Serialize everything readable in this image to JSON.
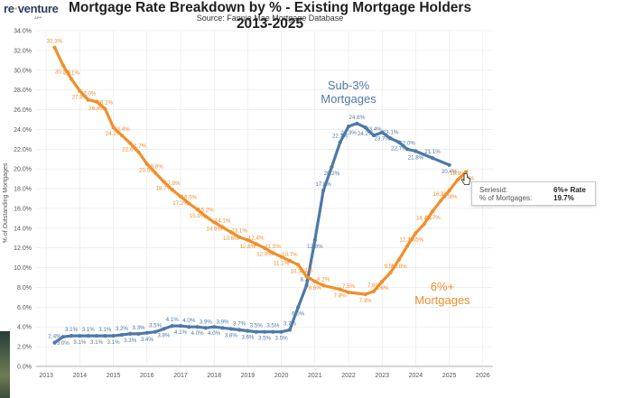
{
  "brand": {
    "name_part1": "re",
    "name_dot": "·",
    "name_part2": "venture",
    "sub": "APP"
  },
  "title": "Mortgage Rate Breakdown by % - Existing Mortgage Holders 2013-2025",
  "subtitle": "Source: Fannie Mae Mortgage Database",
  "colors": {
    "sub3": "#4e79a7",
    "six_plus": "#f28e2b",
    "grid": "#e6e6e6",
    "text": "#555555"
  },
  "tooltip": {
    "series_key": "Seriesid:",
    "series_value": "6%+ Rate",
    "pct_key": "% of Mortgages:",
    "pct_value": "19.7%"
  },
  "chart_data": {
    "type": "line",
    "title": "Mortgage Rate Breakdown by % - Existing Mortgage Holders 2013-2025",
    "ylabel": "% of Outstanding Mortgages",
    "xlabel": "",
    "ylim": [
      0,
      34
    ],
    "xlim": [
      2012.7,
      2026.3
    ],
    "y_ticks": [
      "0.0%",
      "2.0%",
      "4.0%",
      "6.0%",
      "8.0%",
      "10.0%",
      "12.0%",
      "14.0%",
      "16.0%",
      "18.0%",
      "20.0%",
      "22.0%",
      "24.0%",
      "26.0%",
      "28.0%",
      "30.0%",
      "32.0%",
      "34.0%"
    ],
    "x_ticks": [
      "2013",
      "2014",
      "2015",
      "2016",
      "2017",
      "2018",
      "2019",
      "2020",
      "2021",
      "2022",
      "2023",
      "2024",
      "2025",
      "2026"
    ],
    "series": [
      {
        "name": "Sub-3% Mortgages",
        "label_line1": "Sub-3%",
        "label_line2": "Mortgages",
        "color": "#4e79a7",
        "points": [
          {
            "x": 2013.25,
            "y": 2.4,
            "label": "2.4%"
          },
          {
            "x": 2013.5,
            "y": 3.0,
            "label": "3.0%"
          },
          {
            "x": 2013.75,
            "y": 3.1,
            "label": "3.1%"
          },
          {
            "x": 2014.0,
            "y": 3.1,
            "label": "3.1%"
          },
          {
            "x": 2014.25,
            "y": 3.1,
            "label": "3.1%"
          },
          {
            "x": 2014.5,
            "y": 3.1,
            "label": "3.1%"
          },
          {
            "x": 2014.75,
            "y": 3.1,
            "label": "3.1%"
          },
          {
            "x": 2015.0,
            "y": 3.1,
            "label": "3.1%"
          },
          {
            "x": 2015.25,
            "y": 3.2,
            "label": "3.2%"
          },
          {
            "x": 2015.5,
            "y": 3.3,
            "label": "3.3%"
          },
          {
            "x": 2015.75,
            "y": 3.3,
            "label": "3.3%"
          },
          {
            "x": 2016.0,
            "y": 3.4,
            "label": "3.4%"
          },
          {
            "x": 2016.25,
            "y": 3.5,
            "label": "3.5%"
          },
          {
            "x": 2016.5,
            "y": 3.8,
            "label": "3.8%"
          },
          {
            "x": 2016.75,
            "y": 4.1,
            "label": "4.1%"
          },
          {
            "x": 2017.0,
            "y": 4.1,
            "label": "4.1%"
          },
          {
            "x": 2017.25,
            "y": 4.0,
            "label": "4.0%"
          },
          {
            "x": 2017.5,
            "y": 4.0,
            "label": "4.0%"
          },
          {
            "x": 2017.75,
            "y": 3.9,
            "label": "3.9%"
          },
          {
            "x": 2018.0,
            "y": 4.0,
            "label": "4.0%"
          },
          {
            "x": 2018.25,
            "y": 3.9,
            "label": "3.9%"
          },
          {
            "x": 2018.5,
            "y": 3.8,
            "label": "3.8%"
          },
          {
            "x": 2018.75,
            "y": 3.7,
            "label": "3.7%"
          },
          {
            "x": 2019.0,
            "y": 3.6,
            "label": "3.6%"
          },
          {
            "x": 2019.25,
            "y": 3.5,
            "label": "3.5%"
          },
          {
            "x": 2019.5,
            "y": 3.5,
            "label": "3.5%"
          },
          {
            "x": 2019.75,
            "y": 3.5,
            "label": "3.5%"
          },
          {
            "x": 2020.0,
            "y": 3.5,
            "label": "3.5%"
          },
          {
            "x": 2020.25,
            "y": 3.7,
            "label": "3.7%"
          },
          {
            "x": 2020.5,
            "y": 6.0,
            "label": "6.0%"
          },
          {
            "x": 2020.75,
            "y": 8.2,
            "label": "8.2%"
          },
          {
            "x": 2021.0,
            "y": 12.8,
            "label": "12.8%"
          },
          {
            "x": 2021.25,
            "y": 17.8,
            "label": "17.8%"
          },
          {
            "x": 2021.5,
            "y": 20.2,
            "label": "20.2%"
          },
          {
            "x": 2021.75,
            "y": 22.7,
            "label": "22.7%"
          },
          {
            "x": 2022.0,
            "y": 24.3,
            "label": "24.3%"
          },
          {
            "x": 2022.25,
            "y": 24.6,
            "label": "24.6%"
          },
          {
            "x": 2022.5,
            "y": 24.2,
            "label": "24.2%"
          },
          {
            "x": 2022.75,
            "y": 23.4,
            "label": "23.4%"
          },
          {
            "x": 2023.0,
            "y": 23.7,
            "label": "23.7%"
          },
          {
            "x": 2023.25,
            "y": 23.1,
            "label": "23.1%"
          },
          {
            "x": 2023.5,
            "y": 22.7,
            "label": "22.7%"
          },
          {
            "x": 2023.75,
            "y": 22.0,
            "label": "22.0%"
          },
          {
            "x": 2024.0,
            "y": 21.8,
            "label": "21.8%"
          },
          {
            "x": 2024.5,
            "y": 21.1,
            "label": "21.1%"
          },
          {
            "x": 2025.0,
            "y": 20.4,
            "label": "20.4%"
          }
        ]
      },
      {
        "name": "6%+ Mortgages",
        "label_line1": "6%+",
        "label_line2": "Mortgages",
        "color": "#f28e2b",
        "points": [
          {
            "x": 2013.25,
            "y": 32.3,
            "label": "32.3%"
          },
          {
            "x": 2013.5,
            "y": 30.5,
            "label": "30.5%"
          },
          {
            "x": 2013.75,
            "y": 29.1,
            "label": "29.1%"
          },
          {
            "x": 2014.0,
            "y": 27.9,
            "label": "27.9%"
          },
          {
            "x": 2014.25,
            "y": 27.0,
            "label": "27.0%"
          },
          {
            "x": 2014.5,
            "y": 26.8,
            "label": "26.8%"
          },
          {
            "x": 2014.75,
            "y": 26.1,
            "label": "26.1%"
          },
          {
            "x": 2015.0,
            "y": 24.2,
            "label": "24.2%"
          },
          {
            "x": 2015.25,
            "y": 23.4,
            "label": "23.4%"
          },
          {
            "x": 2015.5,
            "y": 22.6,
            "label": "22.6%"
          },
          {
            "x": 2015.75,
            "y": 21.7,
            "label": "21.7%"
          },
          {
            "x": 2016.0,
            "y": 20.5,
            "label": "20.5%"
          },
          {
            "x": 2016.25,
            "y": 19.6,
            "label": "19.6%"
          },
          {
            "x": 2016.5,
            "y": 18.7,
            "label": "18.7%"
          },
          {
            "x": 2016.75,
            "y": 17.9,
            "label": "17.9%"
          },
          {
            "x": 2017.0,
            "y": 17.2,
            "label": "17.2%"
          },
          {
            "x": 2017.25,
            "y": 16.5,
            "label": "16.5%"
          },
          {
            "x": 2017.5,
            "y": 15.9,
            "label": "15.9%"
          },
          {
            "x": 2017.75,
            "y": 15.2,
            "label": "15.2%"
          },
          {
            "x": 2018.0,
            "y": 14.6,
            "label": "14.6%"
          },
          {
            "x": 2018.25,
            "y": 14.1,
            "label": "14.1%"
          },
          {
            "x": 2018.5,
            "y": 13.6,
            "label": "13.6%"
          },
          {
            "x": 2018.75,
            "y": 13.1,
            "label": "13.1%"
          },
          {
            "x": 2019.0,
            "y": 12.8,
            "label": "12.8%"
          },
          {
            "x": 2019.25,
            "y": 12.4,
            "label": "12.4%"
          },
          {
            "x": 2019.5,
            "y": 12.0,
            "label": "12.0%"
          },
          {
            "x": 2019.75,
            "y": 11.5,
            "label": "11.5%"
          },
          {
            "x": 2020.0,
            "y": 11.1,
            "label": "11.1%"
          },
          {
            "x": 2020.25,
            "y": 10.7,
            "label": "10.7%"
          },
          {
            "x": 2020.5,
            "y": 10.3,
            "label": "10.3%"
          },
          {
            "x": 2020.75,
            "y": 9.1,
            "label": "9.1%"
          },
          {
            "x": 2021.0,
            "y": 8.6,
            "label": "8.6%"
          },
          {
            "x": 2021.25,
            "y": 8.2,
            "label": "8.2%"
          },
          {
            "x": 2021.75,
            "y": 7.8,
            "label": "7.8%"
          },
          {
            "x": 2022.0,
            "y": 7.5,
            "label": "7.5%"
          },
          {
            "x": 2022.5,
            "y": 7.3,
            "label": "7.3%"
          },
          {
            "x": 2022.75,
            "y": 7.6,
            "label": "7.6%"
          },
          {
            "x": 2023.0,
            "y": 8.6,
            "label": "8.6%"
          },
          {
            "x": 2023.25,
            "y": 9.5,
            "label": "9.5%"
          },
          {
            "x": 2023.5,
            "y": 10.8,
            "label": "10.8%"
          },
          {
            "x": 2023.75,
            "y": 12.2,
            "label": "12.2%"
          },
          {
            "x": 2024.0,
            "y": 13.5,
            "label": "13.5%"
          },
          {
            "x": 2024.25,
            "y": 14.4,
            "label": "14.4%"
          },
          {
            "x": 2024.5,
            "y": 15.7,
            "label": "15.7%"
          },
          {
            "x": 2024.75,
            "y": 16.8,
            "label": "16.8%"
          },
          {
            "x": 2025.0,
            "y": 17.8,
            "label": "17.8%"
          },
          {
            "x": 2025.25,
            "y": 18.9,
            "label": "18.9%"
          },
          {
            "x": 2025.5,
            "y": 19.7,
            "label": "19.7%"
          }
        ]
      }
    ]
  }
}
